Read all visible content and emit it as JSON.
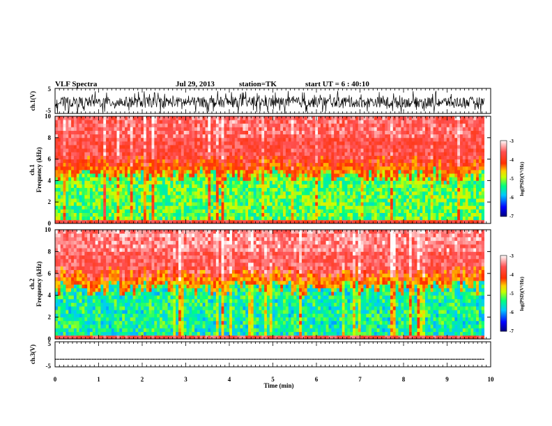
{
  "header": {
    "title": "VLF Spectra",
    "date": "Jul 29, 2013",
    "station": "station=TK",
    "start": "start UT = 6 : 40:10"
  },
  "chart_data": [
    {
      "type": "line",
      "panel": "ch1_waveform",
      "ylabel": "ch.1(V)",
      "ylim": [
        -5,
        5
      ],
      "yticks": [
        "5",
        "-5"
      ],
      "x_range_min": [
        0,
        9.85
      ],
      "description_values": {
        "baseline": -0.5,
        "noise_amplitude": 3.5
      },
      "color": "#000000"
    },
    {
      "type": "heatmap",
      "panel": "ch1_spectrogram",
      "ylabel": "ch.1\nFrequency (kHz)",
      "ylabel_line1": "ch.1",
      "ylabel_line2": "Frequency (kHz)",
      "ylim": [
        0,
        10
      ],
      "yticks": [
        "0",
        "2",
        "4",
        "6",
        "8",
        "10"
      ],
      "x_range_min": [
        0,
        9.85
      ],
      "colorbar": {
        "label": "log(PSD)(V²/Hz)",
        "range": [
          -7,
          -3
        ],
        "ticks": [
          "-3",
          "-4",
          "-5",
          "-6",
          "-7"
        ]
      },
      "low_band_top_khz": 4.5,
      "high_band_level": -3.6,
      "low_band_level": -5.3
    },
    {
      "type": "heatmap",
      "panel": "ch2_spectrogram",
      "ylabel_line1": "ch.2",
      "ylabel_line2": "Frequency (kHz)",
      "ylim": [
        0,
        10
      ],
      "yticks": [
        "0",
        "2",
        "4",
        "6",
        "8",
        "10"
      ],
      "x_range_min": [
        0,
        9.85
      ],
      "colorbar": {
        "label": "log(PSD)(V²/Hz)",
        "range": [
          -7,
          -3
        ],
        "ticks": [
          "-3",
          "-4",
          "-5",
          "-6",
          "-7"
        ]
      },
      "low_band_top_khz": 4.7,
      "high_band_level": -3.5,
      "low_band_level": -5.6
    },
    {
      "type": "line",
      "panel": "ch3_waveform",
      "ylabel": "ch.3(V)",
      "ylim": [
        -5,
        5
      ],
      "yticks": [
        "5",
        "-5"
      ],
      "x_range_min": [
        0,
        9.85
      ],
      "constant_value": -2,
      "color": "#000000"
    }
  ],
  "xaxis": {
    "label": "Time (min)",
    "ticks": [
      "0",
      "1",
      "2",
      "3",
      "4",
      "5",
      "6",
      "7",
      "8",
      "9",
      "10"
    ],
    "range": [
      0,
      10
    ]
  },
  "colormap": [
    "#000080",
    "#0000ff",
    "#00c8ff",
    "#00ff80",
    "#c8ff00",
    "#ffd000",
    "#ff3000",
    "#ff5050",
    "#ffffff"
  ]
}
